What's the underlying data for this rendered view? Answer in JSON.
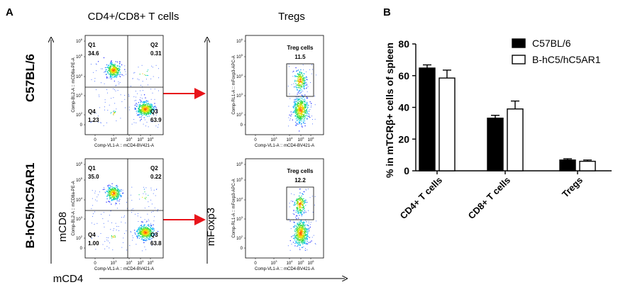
{
  "panel_a": {
    "letter": "A",
    "col_titles": [
      "CD4+/CD8+ T cells",
      "Tregs"
    ],
    "row_labels": [
      "C57BL/6",
      "B-hC5/hC5AR1"
    ],
    "y_axis_label_1": "mCD8",
    "y_axis_label_2": "mFoxp3",
    "x_axis_label": "mCD4",
    "quadrant_plots": [
      {
        "y_label": "Comp-BL2-A :: mCD8a-PE-A",
        "x_label": "Comp-VL1-A :: mCD4-BV421-A",
        "quadrants": [
          {
            "name": "Q1",
            "value": "34.6"
          },
          {
            "name": "Q2",
            "value": "0.31"
          },
          {
            "name": "Q4",
            "value": "1.23"
          },
          {
            "name": "Q3",
            "value": "63.9"
          }
        ]
      },
      {
        "y_label": "Comp-BL2-A :: mCD8a-PE-A",
        "x_label": "Comp-VL1-A :: mCD4-BV421-A",
        "quadrants": [
          {
            "name": "Q1",
            "value": "35.0"
          },
          {
            "name": "Q2",
            "value": "0.22"
          },
          {
            "name": "Q4",
            "value": "1.00"
          },
          {
            "name": "Q3",
            "value": "63.8"
          }
        ]
      }
    ],
    "treg_plots": [
      {
        "y_label": "Comp-RL1-A :: mFoxp3-APC-A",
        "x_label": "Comp-VL1-A :: mCD4-BV421-A",
        "gate_label": "Treg cells",
        "gate_value": "11.5"
      },
      {
        "y_label": "Comp-RL1-A :: mFoxp3-APC-A",
        "x_label": "Comp-VL1-A :: mCD4-BV421-A",
        "gate_label": "Treg cells",
        "gate_value": "12.2"
      }
    ],
    "tick_labels_y": [
      "10",
      "10",
      "10",
      "10",
      "10",
      "0"
    ],
    "tick_exponents_y": [
      "6",
      "5",
      "4",
      "3",
      "2",
      ""
    ],
    "tick_labels_x": [
      "0",
      "10",
      "10",
      "10",
      "10"
    ],
    "tick_exponents_x": [
      "",
      "3",
      "4",
      "5",
      "6"
    ],
    "colors": {
      "arrow": "#e8141b",
      "density_low": "#2b33ff",
      "density_high": "#ff2a00"
    }
  },
  "chart_data": {
    "type": "bar",
    "panel_letter": "B",
    "ylabel": "% in mTCRβ+ cells of spleen",
    "ylim": [
      0,
      80
    ],
    "yticks": [
      0,
      20,
      40,
      60,
      80
    ],
    "categories": [
      "CD4+ T cells",
      "CD8+ T cells",
      "Tregs"
    ],
    "series": [
      {
        "name": "C57BL/6",
        "values": [
          64.8,
          33.2,
          6.8
        ],
        "errors": [
          2.0,
          1.8,
          0.8
        ],
        "color": "#000000"
      },
      {
        "name": "B-hC5/hC5AR1",
        "values": [
          58.5,
          39.0,
          6.0
        ],
        "errors": [
          5.0,
          5.0,
          0.8
        ],
        "color": "#ffffff"
      }
    ],
    "legend_position": "top-right",
    "grid": false
  }
}
